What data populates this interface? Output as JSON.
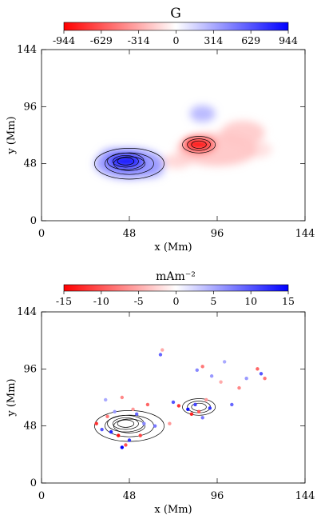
{
  "chart_data": [
    {
      "type": "heatmap",
      "colorbar_title": "G",
      "colorbar_ticks": [
        "-944",
        "-629",
        "-314",
        "0",
        "314",
        "629",
        "944"
      ],
      "colorbar_range": [
        -944,
        944
      ],
      "colors": {
        "negative": "#ff0000",
        "zero": "#ffffff",
        "positive": "#0000ff"
      },
      "xlabel": "x (Mm)",
      "ylabel": "y (Mm)",
      "xlim": [
        0,
        144
      ],
      "ylim": [
        0,
        144
      ],
      "xticks": [
        "0",
        "48",
        "96",
        "144"
      ],
      "yticks": [
        "0",
        "48",
        "96",
        "144"
      ],
      "blobs": [
        {
          "x": 48,
          "y": 48,
          "rx": 19,
          "ry": 13,
          "value": 400
        },
        {
          "x": 46,
          "y": 50,
          "rx": 10,
          "ry": 7,
          "value": 900
        },
        {
          "x": 40,
          "y": 55,
          "rx": 8,
          "ry": 6,
          "value": 300
        },
        {
          "x": 60,
          "y": 42,
          "rx": 7,
          "ry": 6,
          "value": 250
        },
        {
          "x": 86,
          "y": 64,
          "rx": 9,
          "ry": 7,
          "value": -944
        },
        {
          "x": 96,
          "y": 60,
          "rx": 22,
          "ry": 14,
          "value": -220
        },
        {
          "x": 110,
          "y": 74,
          "rx": 12,
          "ry": 10,
          "value": -200
        },
        {
          "x": 74,
          "y": 50,
          "rx": 8,
          "ry": 6,
          "value": -160
        },
        {
          "x": 88,
          "y": 90,
          "rx": 7,
          "ry": 7,
          "value": 280
        },
        {
          "x": 118,
          "y": 60,
          "rx": 8,
          "ry": 7,
          "value": -120
        }
      ]
    },
    {
      "type": "scatter",
      "colorbar_title": "mAm⁻²",
      "colorbar_ticks": [
        "-15",
        "-10",
        "-5",
        "0",
        "5",
        "10",
        "15"
      ],
      "colorbar_range": [
        -15,
        15
      ],
      "colors": {
        "negative": "#ff0000",
        "zero": "#ffffff",
        "positive": "#0000ff"
      },
      "xlabel": "x (Mm)",
      "ylabel": "y (Mm)",
      "xlim": [
        0,
        144
      ],
      "ylim": [
        0,
        144
      ],
      "xticks": [
        "0",
        "48",
        "96",
        "144"
      ],
      "yticks": [
        "0",
        "48",
        "96",
        "144"
      ],
      "points": [
        {
          "x": 30,
          "y": 50,
          "v": -12
        },
        {
          "x": 33,
          "y": 45,
          "v": 10
        },
        {
          "x": 36,
          "y": 56,
          "v": -8
        },
        {
          "x": 38,
          "y": 43,
          "v": 13
        },
        {
          "x": 40,
          "y": 60,
          "v": 6
        },
        {
          "x": 42,
          "y": 40,
          "v": -14
        },
        {
          "x": 44,
          "y": 30,
          "v": 15
        },
        {
          "x": 46,
          "y": 32,
          "v": -10
        },
        {
          "x": 48,
          "y": 36,
          "v": 12
        },
        {
          "x": 50,
          "y": 62,
          "v": -6
        },
        {
          "x": 52,
          "y": 58,
          "v": 9
        },
        {
          "x": 54,
          "y": 40,
          "v": -11
        },
        {
          "x": 56,
          "y": 50,
          "v": 7
        },
        {
          "x": 58,
          "y": 66,
          "v": -9
        },
        {
          "x": 62,
          "y": 48,
          "v": 8
        },
        {
          "x": 35,
          "y": 70,
          "v": 5
        },
        {
          "x": 44,
          "y": 72,
          "v": -7
        },
        {
          "x": 65,
          "y": 108,
          "v": 9
        },
        {
          "x": 66,
          "y": 112,
          "v": -5
        },
        {
          "x": 72,
          "y": 68,
          "v": 10
        },
        {
          "x": 75,
          "y": 65,
          "v": -12
        },
        {
          "x": 80,
          "y": 62,
          "v": 14
        },
        {
          "x": 82,
          "y": 58,
          "v": -13
        },
        {
          "x": 84,
          "y": 66,
          "v": 11
        },
        {
          "x": 86,
          "y": 60,
          "v": -10
        },
        {
          "x": 88,
          "y": 55,
          "v": 8
        },
        {
          "x": 90,
          "y": 70,
          "v": -6
        },
        {
          "x": 92,
          "y": 63,
          "v": 12
        },
        {
          "x": 85,
          "y": 95,
          "v": 7
        },
        {
          "x": 88,
          "y": 98,
          "v": -8
        },
        {
          "x": 93,
          "y": 90,
          "v": 6
        },
        {
          "x": 98,
          "y": 85,
          "v": -5
        },
        {
          "x": 104,
          "y": 66,
          "v": 9
        },
        {
          "x": 108,
          "y": 80,
          "v": -7
        },
        {
          "x": 112,
          "y": 88,
          "v": 6
        },
        {
          "x": 118,
          "y": 96,
          "v": -9
        },
        {
          "x": 120,
          "y": 92,
          "v": 10
        },
        {
          "x": 122,
          "y": 88,
          "v": -8
        },
        {
          "x": 100,
          "y": 102,
          "v": 5
        },
        {
          "x": 70,
          "y": 50,
          "v": -6
        }
      ]
    }
  ]
}
